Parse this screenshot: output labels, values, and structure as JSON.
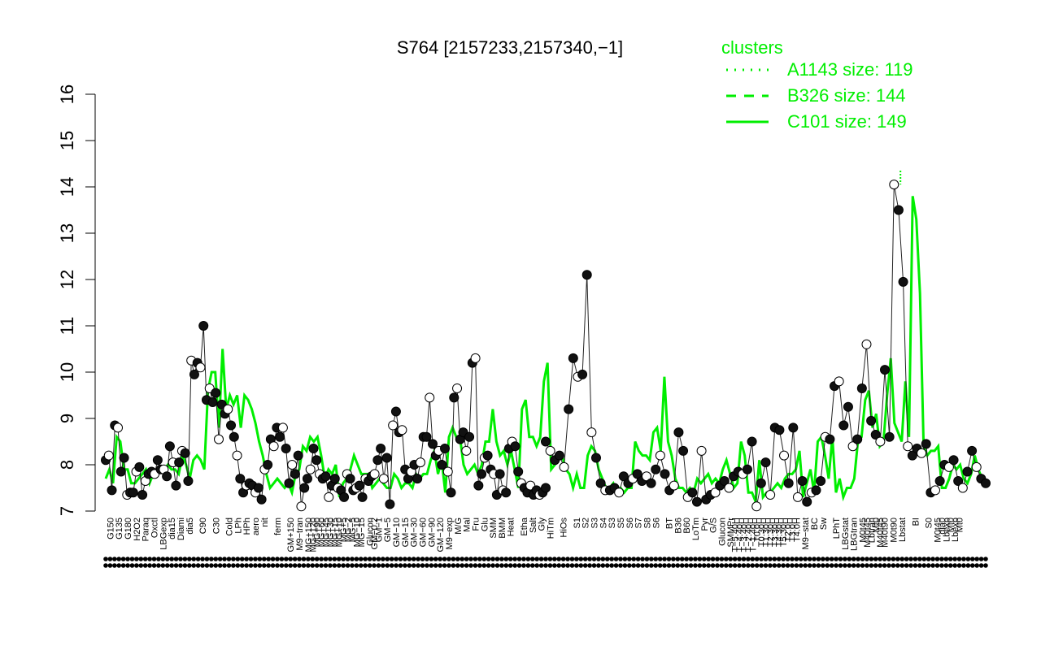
{
  "chart_data": {
    "type": "line",
    "title": "S764 [2157233,2157340,−1]",
    "ylim": [
      7,
      16
    ],
    "yticks": [
      7,
      8,
      9,
      10,
      11,
      12,
      13,
      14,
      15,
      16
    ],
    "xlim": [
      0,
      200
    ],
    "grid": false,
    "legend": {
      "title": "clusters",
      "placement": "top-right",
      "entries": [
        {
          "label": "A1143 size: 119",
          "style": "dotted"
        },
        {
          "label": "B326 size: 144",
          "style": "dashed"
        },
        {
          "label": "C101 size: 149",
          "style": "solid"
        }
      ]
    },
    "colors": {
      "cluster_line": "#00ee00",
      "series_line": "#222222",
      "axis": "#000000"
    },
    "xtick_labels": [
      {
        "x": 1,
        "label": "G150",
        "row": 1
      },
      {
        "x": 3,
        "label": "G135",
        "row": 0
      },
      {
        "x": 5,
        "label": "G180",
        "row": 1
      },
      {
        "x": 7,
        "label": "H2O2",
        "row": 0
      },
      {
        "x": 9,
        "label": "Paraq",
        "row": 1
      },
      {
        "x": 11,
        "label": "Oxctl",
        "row": 0
      },
      {
        "x": 13,
        "label": "LBGexp",
        "row": 1
      },
      {
        "x": 15,
        "label": "dia15",
        "row": 0
      },
      {
        "x": 17,
        "label": "Diami",
        "row": 1
      },
      {
        "x": 19,
        "label": "dia5",
        "row": 0
      },
      {
        "x": 22,
        "label": "C90",
        "row": 1
      },
      {
        "x": 25,
        "label": "C30",
        "row": 0
      },
      {
        "x": 28,
        "label": "Cold",
        "row": 1
      },
      {
        "x": 30,
        "label": "LPh",
        "row": 0
      },
      {
        "x": 32,
        "label": "HPh",
        "row": 1
      },
      {
        "x": 34,
        "label": "aero",
        "row": 0
      },
      {
        "x": 36,
        "label": "nit",
        "row": 1
      },
      {
        "x": 39,
        "label": "ferm",
        "row": 0
      },
      {
        "x": 42,
        "label": "GM+150",
        "row": 1
      },
      {
        "x": 44,
        "label": "M9−tran",
        "row": 0
      },
      {
        "x": 46,
        "label": "MG+150",
        "row": 1
      },
      {
        "x": 47,
        "label": "MG+120",
        "row": 0
      },
      {
        "x": 48,
        "label": "MG+90",
        "row": 1
      },
      {
        "x": 49,
        "label": "MG+60",
        "row": 1
      },
      {
        "x": 50,
        "label": "MG+45",
        "row": 1
      },
      {
        "x": 51,
        "label": "MG+30",
        "row": 1
      },
      {
        "x": 52,
        "label": "MG+15",
        "row": 1
      },
      {
        "x": 53,
        "label": "MG+10",
        "row": 1
      },
      {
        "x": 54,
        "label": "MG+5",
        "row": 1
      },
      {
        "x": 55,
        "label": "MG−2",
        "row": 1
      },
      {
        "x": 56,
        "label": "MG−5",
        "row": 1
      },
      {
        "x": 57,
        "label": "MG−10",
        "row": 1
      },
      {
        "x": 58,
        "label": "MG−15",
        "row": 1
      },
      {
        "x": 60,
        "label": "Glucon",
        "row": 1
      },
      {
        "x": 61,
        "label": "GM−0.2",
        "row": 0
      },
      {
        "x": 62,
        "label": "GM−1",
        "row": 1
      },
      {
        "x": 64,
        "label": "GM−5",
        "row": 1
      },
      {
        "x": 66,
        "label": "GM−10",
        "row": 1
      },
      {
        "x": 68,
        "label": "GM−15",
        "row": 1
      },
      {
        "x": 70,
        "label": "GM−30",
        "row": 1
      },
      {
        "x": 72,
        "label": "GM−60",
        "row": 1
      },
      {
        "x": 74,
        "label": "GM−90",
        "row": 1
      },
      {
        "x": 76,
        "label": "GM−120",
        "row": 1
      },
      {
        "x": 78,
        "label": "M9−exp",
        "row": 0
      },
      {
        "x": 80,
        "label": "M/G",
        "row": 1
      },
      {
        "x": 82,
        "label": "Mal",
        "row": 0
      },
      {
        "x": 84,
        "label": "Fru",
        "row": 1
      },
      {
        "x": 86,
        "label": "Glu",
        "row": 0
      },
      {
        "x": 88,
        "label": "SMM",
        "row": 1
      },
      {
        "x": 90,
        "label": "BMM",
        "row": 0
      },
      {
        "x": 92,
        "label": "Heat",
        "row": 1
      },
      {
        "x": 95,
        "label": "Etha",
        "row": 0
      },
      {
        "x": 97,
        "label": "Salt",
        "row": 1
      },
      {
        "x": 99,
        "label": "Gly",
        "row": 0
      },
      {
        "x": 101,
        "label": "HiTm",
        "row": 1
      },
      {
        "x": 104,
        "label": "HiOs",
        "row": 0
      },
      {
        "x": 107,
        "label": "S1",
        "row": 1
      },
      {
        "x": 109,
        "label": "S2",
        "row": 0
      },
      {
        "x": 111,
        "label": "S3",
        "row": 1
      },
      {
        "x": 113,
        "label": "S4",
        "row": 0
      },
      {
        "x": 115,
        "label": "S3",
        "row": 1
      },
      {
        "x": 117,
        "label": "S5",
        "row": 0
      },
      {
        "x": 119,
        "label": "S6",
        "row": 1
      },
      {
        "x": 121,
        "label": "S7",
        "row": 0
      },
      {
        "x": 123,
        "label": "S8",
        "row": 1
      },
      {
        "x": 125,
        "label": "S6",
        "row": 0
      },
      {
        "x": 128,
        "label": "BT",
        "row": 1
      },
      {
        "x": 130,
        "label": "B36",
        "row": 0
      },
      {
        "x": 132,
        "label": "B60",
        "row": 1
      },
      {
        "x": 134,
        "label": "LoTm",
        "row": 0
      },
      {
        "x": 136,
        "label": "Pyr",
        "row": 1
      },
      {
        "x": 138,
        "label": "G/S",
        "row": 0
      },
      {
        "x": 140,
        "label": "Glucon",
        "row": 1
      },
      {
        "x": 142,
        "label": "SMMPr",
        "row": 0
      },
      {
        "x": 143,
        "label": "T−5.40H",
        "row": 0
      },
      {
        "x": 144,
        "label": "T−4.40H",
        "row": 0
      },
      {
        "x": 145,
        "label": "T−3.40H",
        "row": 0
      },
      {
        "x": 146,
        "label": "T−2.40H",
        "row": 0
      },
      {
        "x": 147,
        "label": "T−1.40H",
        "row": 0
      },
      {
        "x": 148,
        "label": "T0.0H",
        "row": 0
      },
      {
        "x": 149,
        "label": "T0.30H",
        "row": 1
      },
      {
        "x": 150,
        "label": "T1.30H",
        "row": 1
      },
      {
        "x": 151,
        "label": "T2.30H",
        "row": 1
      },
      {
        "x": 152,
        "label": "T3.30H",
        "row": 1
      },
      {
        "x": 153,
        "label": "T4.30H",
        "row": 1
      },
      {
        "x": 154,
        "label": "T5.30H",
        "row": 1
      },
      {
        "x": 155,
        "label": "T2.0H",
        "row": 0
      },
      {
        "x": 156,
        "label": "T3.0H",
        "row": 0
      },
      {
        "x": 157,
        "label": "T4.0H",
        "row": 0
      },
      {
        "x": 159,
        "label": "M9−stat",
        "row": 0
      },
      {
        "x": 161,
        "label": "BC",
        "row": 1
      },
      {
        "x": 163,
        "label": "Sw",
        "row": 0
      },
      {
        "x": 166,
        "label": "LPhT",
        "row": 1
      },
      {
        "x": 168,
        "label": "LBGstat",
        "row": 0
      },
      {
        "x": 170,
        "label": "LBGtran",
        "row": 1
      },
      {
        "x": 172,
        "label": "M0t45",
        "row": 0
      },
      {
        "x": 173,
        "label": "M40t45",
        "row": 1
      },
      {
        "x": 174,
        "label": "Lbtran",
        "row": 0
      },
      {
        "x": 175,
        "label": "Mt0",
        "row": 1
      },
      {
        "x": 176,
        "label": "M40t45",
        "row": 0
      },
      {
        "x": 177,
        "label": "M40t90",
        "row": 1
      },
      {
        "x": 179,
        "label": "M0t90",
        "row": 0
      },
      {
        "x": 181,
        "label": "Lbstat",
        "row": 1
      },
      {
        "x": 184,
        "label": "BI",
        "row": 0
      },
      {
        "x": 187,
        "label": "S0",
        "row": 1
      },
      {
        "x": 189,
        "label": "M0t45",
        "row": 0
      },
      {
        "x": 190,
        "label": "dia0",
        "row": 1
      },
      {
        "x": 191,
        "label": "Lbexp",
        "row": 0
      },
      {
        "x": 192,
        "label": "Mt0",
        "row": 1
      },
      {
        "x": 193,
        "label": "Lbexp",
        "row": 0
      },
      {
        "x": 194,
        "label": "Mt0",
        "row": 1
      }
    ],
    "series": [
      {
        "values": [
          8.1,
          8.2,
          7.45,
          8.85,
          8.8,
          7.85,
          8.15,
          7.35,
          7.4,
          7.4,
          7.85,
          7.95,
          7.35,
          7.65,
          7.8,
          7.85,
          7.8,
          8.1,
          7.9,
          7.9,
          7.75,
          8.4,
          8.05,
          7.55,
          8.05,
          8.3,
          8.25,
          7.65,
          10.25,
          9.95,
          10.2,
          10.1,
          11.0,
          9.4,
          9.65,
          9.35,
          9.55,
          8.55,
          9.3,
          9.1,
          9.2,
          8.85,
          8.6,
          8.2,
          7.7,
          7.4,
          7.55,
          7.6,
          7.55,
          7.4,
          7.5,
          7.25,
          7.9,
          8.0,
          8.55,
          8.4,
          8.8,
          8.6,
          8.8,
          8.35,
          7.6,
          8.0,
          7.8,
          8.2,
          7.1,
          7.5,
          7.7,
          7.9,
          8.35,
          8.1,
          7.8,
          7.7,
          7.75,
          7.3,
          7.55,
          7.7,
          7.5,
          7.45,
          7.3,
          7.8,
          7.7,
          7.45,
          7.5,
          7.55,
          7.3,
          7.7,
          7.65,
          7.75,
          7.8,
          8.1,
          8.35,
          7.7,
          8.15,
          7.15,
          8.85,
          9.15,
          8.7,
          8.75,
          7.9,
          7.7,
          7.85,
          8.0,
          7.7,
          8.05,
          8.6,
          8.6,
          9.45,
          8.45,
          8.2,
          8.3,
          8.0,
          8.35,
          7.85,
          7.4,
          9.45,
          9.65,
          8.55,
          8.7,
          8.3,
          8.6,
          10.2,
          10.3,
          7.55,
          7.8,
          8.15,
          8.2,
          7.9,
          7.8,
          7.35,
          7.8,
          7.45,
          7.4,
          8.35,
          8.5,
          8.4,
          7.85,
          7.6,
          7.5,
          7.4,
          7.55,
          7.35,
          7.45,
          7.35,
          7.4,
          7.5
        ],
        "note_x_start": 0
      },
      {
        "values": [
          8.5,
          8.3,
          8.1,
          8.2,
          7.95,
          9.2,
          10.3,
          9.9,
          9.95,
          12.1,
          8.7,
          8.15,
          7.6,
          7.45,
          7.45,
          7.5,
          7.4,
          7.75,
          7.6,
          7.7,
          7.8,
          7.65,
          7.75,
          7.6,
          7.9,
          8.2,
          7.8,
          7.45,
          7.55,
          8.7,
          8.3,
          7.3,
          7.4,
          7.2,
          8.3,
          7.25,
          7.35,
          7.4,
          7.55,
          7.65,
          7.5,
          7.75,
          7.85,
          7.8,
          7.9,
          8.5,
          7.1,
          7.6,
          8.05,
          7.35,
          8.8,
          8.75,
          8.2,
          7.6,
          8.8,
          7.3,
          7.65,
          7.2,
          7.4,
          7.45,
          7.65,
          8.6,
          8.55,
          9.7,
          9.8,
          8.85,
          9.25,
          8.4,
          8.55,
          9.65,
          10.6,
          8.95,
          8.65,
          8.5,
          10.05,
          8.6,
          14.05,
          13.5,
          11.95,
          8.4,
          8.2,
          8.35,
          8.25,
          8.45,
          7.4,
          7.45,
          7.65,
          8.0,
          7.95,
          8.1,
          7.65,
          7.5,
          7.85,
          8.3,
          7.95,
          7.7,
          7.6
        ],
        "note_x_start": 105
      }
    ],
    "cluster_lines": [
      {
        "style": "solid",
        "values": [
          7.7,
          7.9,
          7.6,
          8.6,
          8.5,
          7.9,
          7.9,
          7.6,
          7.6,
          7.7,
          7.8,
          7.9,
          7.6,
          7.8,
          7.9,
          7.9,
          7.9,
          8.0,
          7.9,
          7.9,
          7.8,
          8.2,
          8.0,
          7.7,
          8.1,
          8.2,
          8.1,
          7.9,
          9.6,
          10.0,
          10.0,
          8.8,
          10.5,
          9.2,
          9.5,
          9.3,
          9.5,
          8.8,
          9.5,
          9.4,
          9.2,
          8.9,
          8.5,
          8.2,
          7.8,
          7.5,
          7.6,
          7.7,
          7.6,
          7.5,
          7.6,
          7.4,
          7.8,
          7.9,
          8.4,
          8.3,
          8.6,
          8.5,
          8.6,
          8.2,
          7.7,
          7.9,
          7.8,
          8.0,
          7.3,
          7.6,
          7.7,
          7.9,
          8.2,
          8.0,
          7.8,
          7.8,
          7.8,
          7.5,
          7.6,
          7.7,
          7.6,
          7.5,
          7.5,
          7.8,
          7.7,
          7.5,
          7.6,
          7.6,
          7.5,
          7.8,
          7.7,
          7.8,
          7.8,
          8.1,
          8.3,
          7.8,
          8.1,
          7.4,
          8.6,
          8.8,
          8.6,
          8.6,
          8.0,
          7.8,
          7.9,
          8.0,
          7.8,
          8.0,
          8.5,
          8.5,
          9.2,
          8.5,
          8.2,
          8.3,
          8.0,
          8.3,
          7.9,
          7.5,
          9.2,
          9.4,
          8.6,
          8.6,
          8.4,
          8.6,
          9.8,
          10.2,
          7.9,
          8.0,
          8.1,
          8.2,
          7.9,
          7.8,
          7.5,
          7.8,
          7.5,
          7.5,
          8.2,
          8.4,
          8.3,
          7.9,
          7.7,
          7.5,
          7.5,
          7.6,
          7.4,
          7.5,
          7.4,
          7.5,
          7.5,
          8.5,
          8.3,
          8.2,
          8.2,
          8.1,
          8.7,
          8.8,
          8.3,
          9.9,
          8.5,
          8.2,
          7.7,
          7.5,
          7.5,
          7.4,
          7.5,
          7.4,
          7.7,
          7.6,
          7.7,
          7.8,
          7.6,
          7.7,
          7.6,
          7.9,
          8.1,
          7.8,
          7.5,
          7.6,
          8.5,
          8.2,
          7.4,
          7.4,
          7.2,
          8.1,
          7.3,
          7.4,
          7.4,
          7.5,
          7.6,
          7.5,
          7.7,
          7.8,
          7.8,
          7.9,
          8.3,
          7.3,
          7.6,
          7.9,
          7.4,
          8.5,
          8.6,
          8.2,
          7.7,
          8.6,
          7.4,
          7.7,
          7.3,
          7.5,
          7.5,
          7.7,
          8.5,
          8.6,
          9.4,
          9.6,
          8.8,
          9.1,
          8.4,
          8.5,
          9.5,
          10.3,
          8.9,
          8.7,
          8.5,
          9.8,
          8.6,
          13.8,
          13.3,
          11.7,
          8.4,
          8.2,
          8.3,
          8.3,
          8.4,
          7.5,
          7.5,
          7.7,
          8.0,
          7.9,
          8.0,
          7.7,
          7.6,
          7.8,
          8.2,
          7.9,
          7.7,
          7.6
        ]
      }
    ],
    "peak_marker": {
      "x": 181,
      "y": 14.35
    }
  }
}
